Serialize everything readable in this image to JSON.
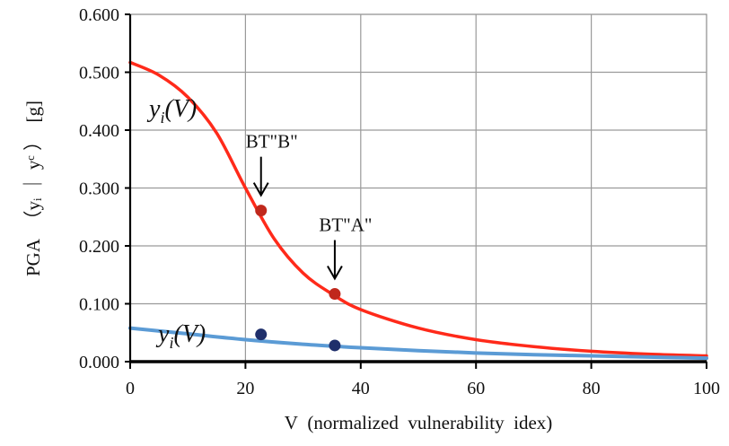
{
  "chart_data": {
    "type": "line",
    "title": "",
    "xlabel": "V  (normalized  vulnerability  idex)",
    "ylabel": "PGA  （yᵢ ｜ yᶜ ）  [g]",
    "xlim": [
      0,
      100
    ],
    "ylim": [
      0,
      0.6
    ],
    "x_ticks": [
      "0",
      "20",
      "40",
      "60",
      "80",
      "100"
    ],
    "y_ticks": [
      "0.000",
      "0.100",
      "0.200",
      "0.300",
      "0.400",
      "0.500",
      "0.600"
    ],
    "grid": true,
    "series": [
      {
        "name": "y_i(V)",
        "color": "#ff2a1a",
        "points": [
          [
            0,
            0.517
          ],
          [
            5,
            0.495
          ],
          [
            10,
            0.457
          ],
          [
            15,
            0.395
          ],
          [
            20,
            0.3
          ],
          [
            25,
            0.212
          ],
          [
            30,
            0.153
          ],
          [
            35,
            0.117
          ],
          [
            40,
            0.09
          ],
          [
            50,
            0.058
          ],
          [
            60,
            0.038
          ],
          [
            70,
            0.026
          ],
          [
            80,
            0.018
          ],
          [
            90,
            0.013
          ],
          [
            100,
            0.01
          ]
        ]
      },
      {
        "name": "y_i(V)",
        "color": "#5b9bd5",
        "points": [
          [
            0,
            0.058
          ],
          [
            10,
            0.048
          ],
          [
            20,
            0.038
          ],
          [
            30,
            0.03
          ],
          [
            40,
            0.024
          ],
          [
            50,
            0.019
          ],
          [
            60,
            0.015
          ],
          [
            70,
            0.012
          ],
          [
            80,
            0.01
          ],
          [
            90,
            0.008
          ],
          [
            100,
            0.006
          ]
        ]
      }
    ],
    "markers": [
      {
        "x": 22.7,
        "y": 0.261,
        "color": "#c0281c"
      },
      {
        "x": 35.5,
        "y": 0.117,
        "color": "#c0281c"
      },
      {
        "x": 22.7,
        "y": 0.047,
        "color": "#1f2f6b"
      },
      {
        "x": 35.5,
        "y": 0.028,
        "color": "#1f2f6b"
      }
    ],
    "annotations": [
      {
        "text": "BT\"B\"",
        "x": 22.7,
        "y": 0.261
      },
      {
        "text": "BT\"A\"",
        "x": 35.5,
        "y": 0.117
      }
    ],
    "curve_labels": [
      {
        "main": "y",
        "sub": "i",
        "rest": "(V)",
        "series": 0
      },
      {
        "main": "y",
        "sub": "i",
        "rest": "(V)",
        "series": 1
      }
    ]
  }
}
